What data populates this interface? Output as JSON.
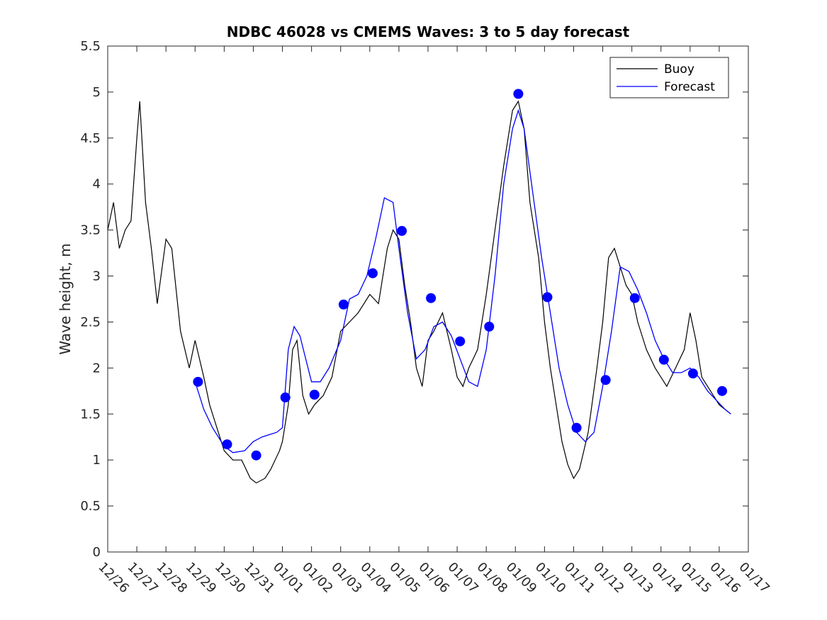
{
  "chart_data": {
    "type": "line",
    "title": "NDBC 46028 vs CMEMS Waves: 3 to 5 day forecast",
    "xlabel": "",
    "ylabel": "Wave height, m",
    "xlim": [
      0,
      22
    ],
    "ylim": [
      0,
      5.5
    ],
    "yticks": [
      0,
      0.5,
      1,
      1.5,
      2,
      2.5,
      3,
      3.5,
      4,
      4.5,
      5,
      5.5
    ],
    "ytick_labels": [
      "0",
      "0.5",
      "1",
      "1.5",
      "2",
      "2.5",
      "3",
      "3.5",
      "4",
      "4.5",
      "5",
      "5.5"
    ],
    "xtick_labels": [
      "12/26",
      "12/27",
      "12/28",
      "12/29",
      "12/30",
      "12/31",
      "01/01",
      "01/02",
      "01/03",
      "01/04",
      "01/05",
      "01/06",
      "01/07",
      "01/08",
      "01/09",
      "01/10",
      "01/11",
      "01/12",
      "01/13",
      "01/14",
      "01/15",
      "01/16",
      "01/17"
    ],
    "legend": {
      "position": "top-right",
      "entries": [
        "Buoy",
        "Forecast"
      ]
    },
    "colors": {
      "buoy": "#000000",
      "forecast": "#0000ff",
      "markers": "#0000ff"
    },
    "series": [
      {
        "name": "Buoy",
        "x": [
          0,
          0.2,
          0.4,
          0.6,
          0.8,
          1.0,
          1.1,
          1.3,
          1.5,
          1.7,
          2.0,
          2.2,
          2.5,
          2.8,
          3.0,
          3.3,
          3.5,
          3.8,
          4.0,
          4.3,
          4.6,
          4.9,
          5.1,
          5.4,
          5.6,
          5.9,
          6.0,
          6.2,
          6.35,
          6.5,
          6.7,
          6.9,
          7.1,
          7.4,
          7.7,
          8.0,
          8.3,
          8.6,
          9.0,
          9.3,
          9.6,
          9.8,
          10.0,
          10.2,
          10.4,
          10.6,
          10.8,
          11.0,
          11.2,
          11.5,
          11.8,
          12.0,
          12.2,
          12.4,
          12.7,
          13.0,
          13.3,
          13.6,
          13.9,
          14.1,
          14.3,
          14.5,
          14.8,
          15.0,
          15.2,
          15.4,
          15.6,
          15.8,
          16.0,
          16.2,
          16.5,
          16.8,
          17.0,
          17.2,
          17.4,
          17.6,
          17.8,
          18.0,
          18.2,
          18.5,
          18.8,
          19.0,
          19.2,
          19.5,
          19.8,
          20.0,
          20.2,
          20.4,
          20.6,
          20.8,
          21.0,
          21.2,
          21.4
        ],
        "values": [
          3.5,
          3.8,
          3.3,
          3.5,
          3.6,
          4.5,
          4.9,
          3.8,
          3.3,
          2.7,
          3.4,
          3.3,
          2.4,
          2.0,
          2.3,
          1.9,
          1.6,
          1.3,
          1.1,
          1.0,
          1.0,
          0.8,
          0.75,
          0.8,
          0.9,
          1.1,
          1.2,
          1.6,
          2.2,
          2.3,
          1.7,
          1.5,
          1.6,
          1.7,
          1.9,
          2.4,
          2.5,
          2.6,
          2.8,
          2.7,
          3.3,
          3.5,
          3.4,
          2.9,
          2.5,
          2.0,
          1.8,
          2.3,
          2.4,
          2.6,
          2.2,
          1.9,
          1.8,
          2.0,
          2.2,
          2.8,
          3.5,
          4.2,
          4.8,
          4.9,
          4.6,
          3.8,
          3.2,
          2.5,
          2.0,
          1.6,
          1.2,
          0.95,
          0.8,
          0.9,
          1.3,
          2.0,
          2.5,
          3.2,
          3.3,
          3.1,
          2.9,
          2.8,
          2.5,
          2.2,
          2.0,
          1.9,
          1.8,
          2.0,
          2.2,
          2.6,
          2.3,
          1.9,
          1.8,
          1.7,
          1.6,
          1.55,
          1.5
        ]
      },
      {
        "name": "Forecast",
        "x": [
          3.0,
          3.3,
          3.6,
          4.0,
          4.3,
          4.7,
          5.0,
          5.3,
          5.6,
          5.8,
          6.0,
          6.2,
          6.4,
          6.6,
          6.8,
          7.0,
          7.3,
          7.6,
          8.0,
          8.3,
          8.6,
          8.9,
          9.2,
          9.5,
          9.8,
          10.0,
          10.3,
          10.6,
          10.9,
          11.2,
          11.5,
          11.8,
          12.1,
          12.4,
          12.7,
          13.0,
          13.3,
          13.6,
          13.9,
          14.1,
          14.3,
          14.6,
          14.9,
          15.2,
          15.5,
          15.8,
          16.1,
          16.4,
          16.7,
          17.0,
          17.3,
          17.6,
          17.9,
          18.2,
          18.5,
          18.8,
          19.1,
          19.4,
          19.7,
          20.0,
          20.3,
          20.6,
          20.9,
          21.2,
          21.4
        ],
        "values": [
          1.85,
          1.55,
          1.35,
          1.15,
          1.08,
          1.1,
          1.2,
          1.25,
          1.28,
          1.3,
          1.35,
          2.2,
          2.45,
          2.35,
          2.1,
          1.85,
          1.85,
          2.0,
          2.3,
          2.75,
          2.8,
          3.0,
          3.4,
          3.85,
          3.8,
          3.3,
          2.6,
          2.1,
          2.2,
          2.45,
          2.5,
          2.35,
          2.1,
          1.85,
          1.8,
          2.2,
          3.0,
          4.0,
          4.6,
          4.8,
          4.6,
          3.9,
          3.2,
          2.6,
          2.0,
          1.6,
          1.3,
          1.2,
          1.3,
          1.8,
          2.4,
          3.1,
          3.05,
          2.85,
          2.6,
          2.3,
          2.1,
          1.95,
          1.95,
          2.0,
          1.9,
          1.75,
          1.65,
          1.55,
          1.5
        ]
      },
      {
        "name": "Forecast markers",
        "x": [
          3.1,
          4.1,
          5.1,
          6.1,
          7.1,
          8.1,
          9.1,
          10.1,
          11.1,
          12.1,
          13.1,
          14.1,
          15.1,
          16.1,
          17.1,
          18.1,
          19.1,
          20.1,
          21.1
        ],
        "values": [
          1.85,
          1.17,
          1.05,
          1.68,
          1.71,
          2.69,
          3.03,
          3.49,
          2.76,
          2.29,
          2.45,
          4.98,
          2.77,
          1.35,
          1.87,
          2.76,
          2.09,
          1.94,
          1.75
        ]
      }
    ]
  }
}
